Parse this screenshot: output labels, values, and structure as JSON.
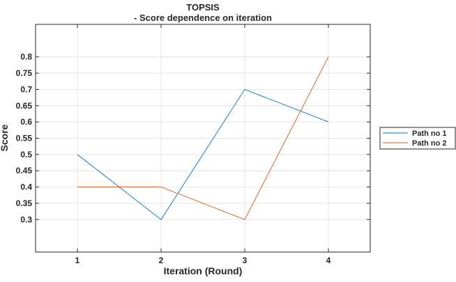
{
  "chart_data": {
    "type": "line",
    "title": "TOPSIS",
    "subtitle": "- Score dependence on iteration",
    "xlabel": "Iteration (Round)",
    "ylabel": "Score",
    "x": [
      1,
      2,
      3,
      4
    ],
    "xlim": [
      0.5,
      4.5
    ],
    "ylim": [
      0.2,
      0.9
    ],
    "x_ticks": [
      "1",
      "2",
      "3",
      "4"
    ],
    "y_ticks": [
      "0.3",
      "0.35",
      "0.4",
      "0.45",
      "0.5",
      "0.55",
      "0.6",
      "0.65",
      "0.7",
      "0.75",
      "0.8"
    ],
    "grid": true,
    "legend_position": "right",
    "series": [
      {
        "name": "Path no 1",
        "values": [
          0.5,
          0.3,
          0.7,
          0.6
        ],
        "color": "#0072bd"
      },
      {
        "name": "Path no 2",
        "values": [
          0.4,
          0.4,
          0.3,
          0.8
        ],
        "color": "#d95319"
      }
    ]
  }
}
